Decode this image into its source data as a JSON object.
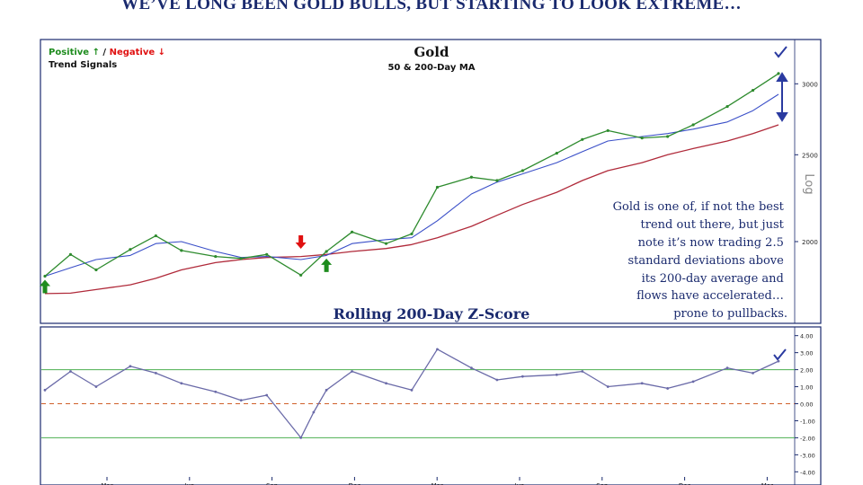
{
  "headline": "WE’VE LONG BEEN GOLD BULLS, BUT STARTING TO LOOK EXTREME…",
  "legend": {
    "positive": "Positive ↑",
    "slash": " / ",
    "negative": "Negative ↓",
    "subtitle": "Trend Signals"
  },
  "colors": {
    "price": "#2e8b2e",
    "ma50": "#3a4fc8",
    "ma200": "#b02a3a",
    "zscore": "#6a6aa8",
    "band": "#4caf50",
    "zero": "#d0602a",
    "arrow_positive": "#1e8c1e",
    "arrow_negative": "#e01010",
    "accent": "#2a3aa0"
  },
  "annotation": [
    "Gold is one of, if not the best",
    "trend out there, but just",
    "note it’s now trading 2.5",
    "standard deviations above",
    "its 200-day average and",
    "flows have accelerated…",
    "prone to pullbacks."
  ],
  "chart_data": [
    {
      "type": "line",
      "title": "Gold",
      "subtitle": "50 & 200-Day MA",
      "ylabel": "Log",
      "yscale": "log",
      "ylim": [
        1640,
        3300
      ],
      "yticks": [
        2000,
        2500,
        3000
      ],
      "x_tick_labels": [
        "Mar",
        "Jun",
        "Sep",
        "Dec",
        "Mar",
        "Jun",
        "Sep",
        "Dec",
        "Mar"
      ],
      "x": [
        0,
        0.3,
        0.6,
        1.0,
        1.3,
        1.6,
        2.0,
        2.3,
        2.6,
        3.0,
        3.3,
        3.6,
        4.0,
        4.3,
        4.6,
        5.0,
        5.3,
        5.6,
        6.0,
        6.3,
        6.6,
        7.0,
        7.3,
        7.6,
        8.0,
        8.3,
        8.6
      ],
      "series": [
        {
          "key": "price",
          "values": [
            1830,
            1935,
            1860,
            1960,
            2030,
            1955,
            1925,
            1915,
            1935,
            1835,
            1950,
            2050,
            1990,
            2040,
            2300,
            2360,
            2340,
            2400,
            2510,
            2600,
            2660,
            2610,
            2620,
            2700,
            2830,
            2950,
            3080
          ]
        },
        {
          "key": "ma50",
          "values": [
            1830,
            1870,
            1910,
            1930,
            1990,
            2000,
            1950,
            1920,
            1925,
            1910,
            1930,
            1990,
            2010,
            2020,
            2110,
            2260,
            2330,
            2380,
            2450,
            2520,
            2590,
            2620,
            2640,
            2670,
            2720,
            2800,
            2920
          ]
        },
        {
          "key": "ma200",
          "values": [
            1750,
            1752,
            1768,
            1790,
            1820,
            1860,
            1895,
            1910,
            1920,
            1925,
            1935,
            1950,
            1965,
            1985,
            2020,
            2080,
            2140,
            2200,
            2270,
            2340,
            2400,
            2450,
            2500,
            2540,
            2590,
            2640,
            2700
          ]
        }
      ],
      "signals": [
        {
          "type": "positive",
          "x": 0.0,
          "y": 1780
        },
        {
          "type": "negative",
          "x": 3.0,
          "y": 2000
        },
        {
          "type": "positive",
          "x": 3.3,
          "y": 1880
        }
      ]
    },
    {
      "type": "line",
      "title": "Rolling 200-Day Z-Score",
      "ylim": [
        -4.3,
        4.3
      ],
      "yticks": [
        4,
        3,
        2,
        1,
        0,
        -1,
        -2,
        -3,
        -4
      ],
      "ytick_labels": [
        "4.00",
        "3.00",
        "2.00",
        "1.00",
        "0.00",
        "-1.00",
        "-2.00",
        "-3.00",
        "-4.00"
      ],
      "reference_lines": [
        2,
        0,
        -2
      ],
      "x": [
        0,
        0.3,
        0.6,
        1.0,
        1.3,
        1.6,
        2.0,
        2.3,
        2.6,
        3.0,
        3.15,
        3.3,
        3.6,
        4.0,
        4.3,
        4.6,
        5.0,
        5.3,
        5.6,
        6.0,
        6.3,
        6.6,
        7.0,
        7.3,
        7.6,
        8.0,
        8.3,
        8.6
      ],
      "series": [
        {
          "key": "zscore",
          "values": [
            0.8,
            1.9,
            1.0,
            2.2,
            1.8,
            1.2,
            0.7,
            0.2,
            0.5,
            -2.0,
            -0.5,
            0.8,
            1.9,
            1.2,
            0.8,
            3.2,
            2.1,
            1.4,
            1.6,
            1.7,
            1.9,
            1.0,
            1.2,
            0.9,
            1.3,
            2.1,
            1.8,
            2.5
          ]
        }
      ]
    }
  ]
}
